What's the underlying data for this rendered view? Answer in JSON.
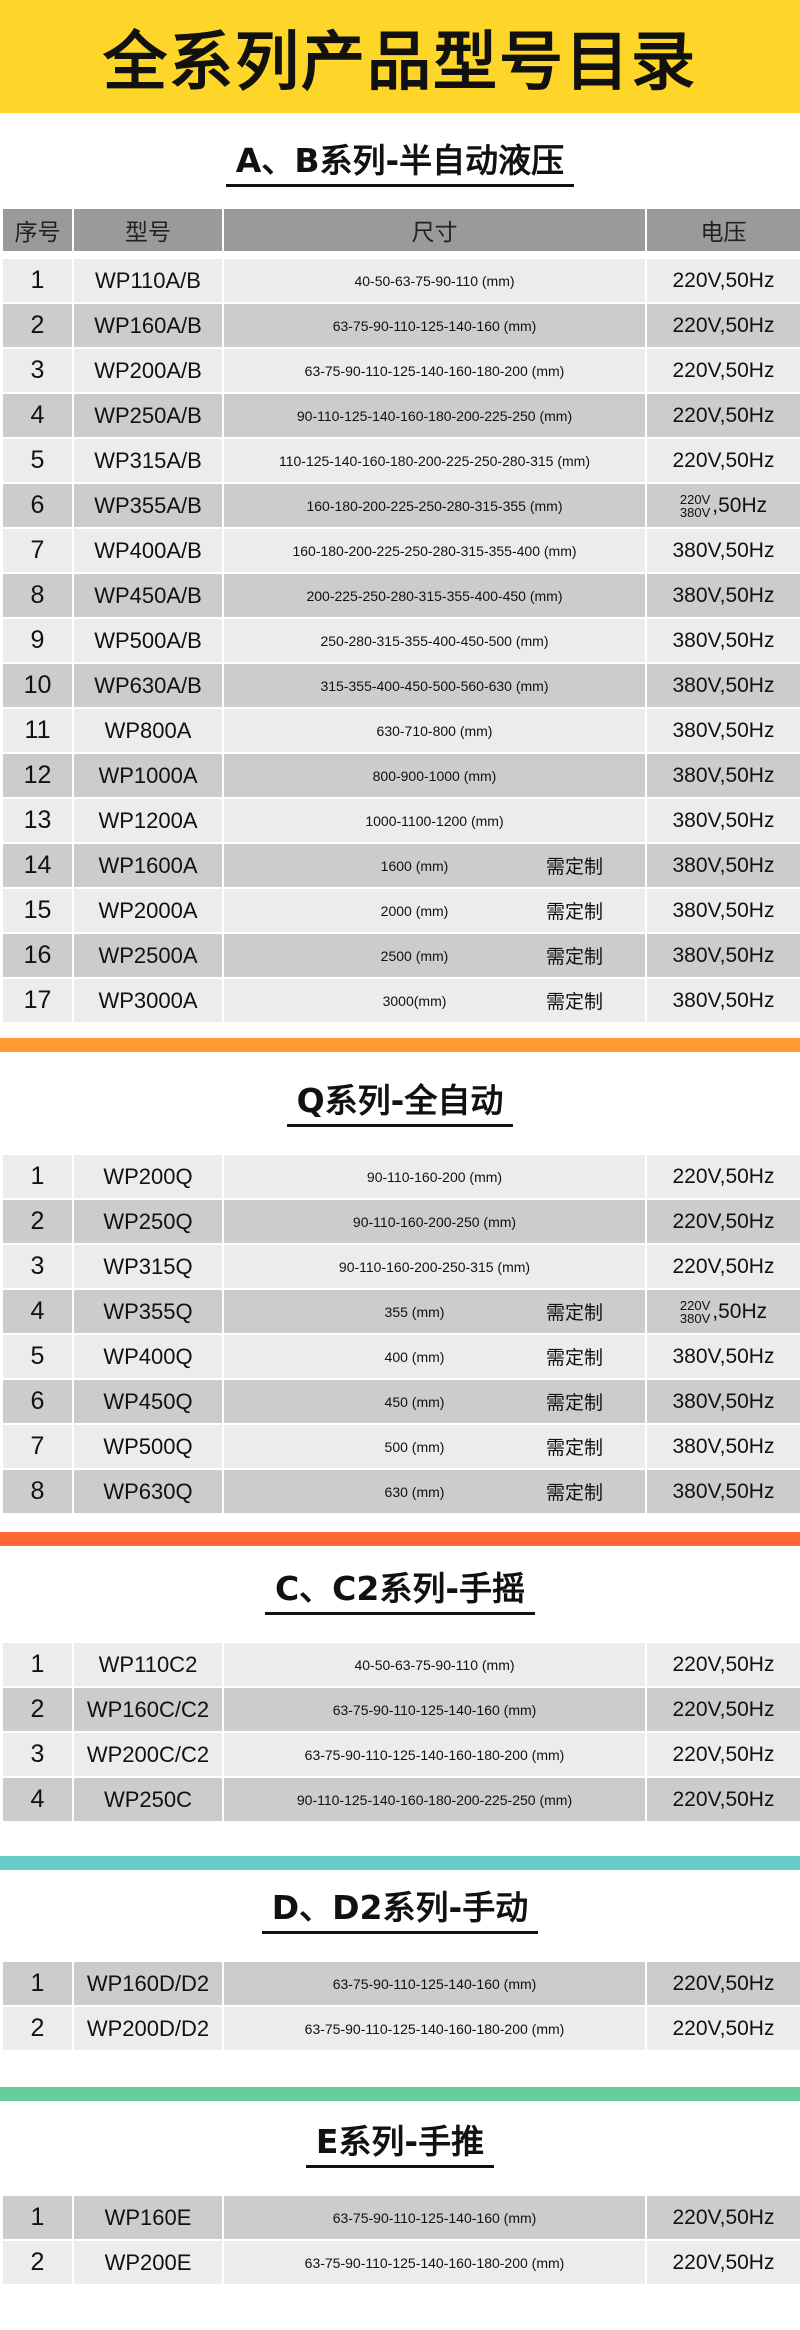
{
  "header": {
    "title": "全系列产品型号目录"
  },
  "columns": [
    "序号",
    "型号",
    "尺寸",
    "电压"
  ],
  "colors": {
    "header": "#FED62A",
    "bar_q": "#FF9A33",
    "bar_c": "#FF6633",
    "bar_d": "#66CCC8",
    "bar_e": "#66CC99",
    "row_light": "#ececec",
    "row_dark": "#cccccc",
    "table_header": "#9a9a9a"
  },
  "sections": [
    {
      "title": "A、B系列-半自动液压",
      "start_dark": false,
      "rows": [
        {
          "no": "1",
          "model": "WP110A/B",
          "size": "40-50-63-75-90-110 (mm)",
          "voltage": "220V,50Hz"
        },
        {
          "no": "2",
          "model": "WP160A/B",
          "size": "63-75-90-110-125-140-160 (mm)",
          "voltage": "220V,50Hz"
        },
        {
          "no": "3",
          "model": "WP200A/B",
          "size": "63-75-90-110-125-140-160-180-200 (mm)",
          "voltage": "220V,50Hz"
        },
        {
          "no": "4",
          "model": "WP250A/B",
          "size": "90-110-125-140-160-180-200-225-250 (mm)",
          "voltage": "220V,50Hz"
        },
        {
          "no": "5",
          "model": "WP315A/B",
          "size": "110-125-140-160-180-200-225-250-280-315 (mm)",
          "voltage": "220V,50Hz"
        },
        {
          "no": "6",
          "model": "WP355A/B",
          "size": "160-180-200-225-250-280-315-355 (mm)",
          "voltage_stack": [
            "220V",
            "380V"
          ],
          "voltage": ",50Hz"
        },
        {
          "no": "7",
          "model": "WP400A/B",
          "size": "160-180-200-225-250-280-315-355-400 (mm)",
          "voltage": "380V,50Hz"
        },
        {
          "no": "8",
          "model": "WP450A/B",
          "size": "200-225-250-280-315-355-400-450 (mm)",
          "voltage": "380V,50Hz"
        },
        {
          "no": "9",
          "model": "WP500A/B",
          "size": "250-280-315-355-400-450-500 (mm)",
          "voltage": "380V,50Hz"
        },
        {
          "no": "10",
          "model": "WP630A/B",
          "size": "315-355-400-450-500-560-630 (mm)",
          "voltage": "380V,50Hz"
        },
        {
          "no": "11",
          "model": "WP800A",
          "size": "630-710-800 (mm)",
          "voltage": "380V,50Hz"
        },
        {
          "no": "12",
          "model": "WP1000A",
          "size": "800-900-1000 (mm)",
          "voltage": "380V,50Hz"
        },
        {
          "no": "13",
          "model": "WP1200A",
          "size": "1000-1100-1200 (mm)",
          "voltage": "380V,50Hz"
        },
        {
          "no": "14",
          "model": "WP1600A",
          "size": "1600 (mm)",
          "note": "需定制",
          "voltage": "380V,50Hz"
        },
        {
          "no": "15",
          "model": "WP2000A",
          "size": "2000 (mm)",
          "note": "需定制",
          "voltage": "380V,50Hz"
        },
        {
          "no": "16",
          "model": "WP2500A",
          "size": "2500 (mm)",
          "note": "需定制",
          "voltage": "380V,50Hz"
        },
        {
          "no": "17",
          "model": "WP3000A",
          "size": "3000(mm)",
          "note": "需定制",
          "voltage": "380V,50Hz"
        }
      ]
    },
    {
      "title": "Q系列-全自动",
      "start_dark": false,
      "rows": [
        {
          "no": "1",
          "model": "WP200Q",
          "size": "90-110-160-200 (mm)",
          "voltage": "220V,50Hz"
        },
        {
          "no": "2",
          "model": "WP250Q",
          "size": "90-110-160-200-250 (mm)",
          "voltage": "220V,50Hz"
        },
        {
          "no": "3",
          "model": "WP315Q",
          "size": "90-110-160-200-250-315 (mm)",
          "voltage": "220V,50Hz"
        },
        {
          "no": "4",
          "model": "WP355Q",
          "size": "355 (mm)",
          "note": "需定制",
          "voltage_stack": [
            "220V",
            "380V"
          ],
          "voltage": ",50Hz"
        },
        {
          "no": "5",
          "model": "WP400Q",
          "size": "400 (mm)",
          "note": "需定制",
          "voltage": "380V,50Hz"
        },
        {
          "no": "6",
          "model": "WP450Q",
          "size": "450 (mm)",
          "note": "需定制",
          "voltage": "380V,50Hz"
        },
        {
          "no": "7",
          "model": "WP500Q",
          "size": "500 (mm)",
          "note": "需定制",
          "voltage": "380V,50Hz"
        },
        {
          "no": "8",
          "model": "WP630Q",
          "size": "630 (mm)",
          "note": "需定制",
          "voltage": "380V,50Hz"
        }
      ]
    },
    {
      "title": "C、C2系列-手摇",
      "start_dark": false,
      "rows": [
        {
          "no": "1",
          "model": "WP110C2",
          "size": "40-50-63-75-90-110 (mm)",
          "voltage": "220V,50Hz"
        },
        {
          "no": "2",
          "model": "WP160C/C2",
          "size": "63-75-90-110-125-140-160 (mm)",
          "voltage": "220V,50Hz"
        },
        {
          "no": "3",
          "model": "WP200C/C2",
          "size": "63-75-90-110-125-140-160-180-200 (mm)",
          "voltage": "220V,50Hz"
        },
        {
          "no": "4",
          "model": "WP250C",
          "size": "90-110-125-140-160-180-200-225-250 (mm)",
          "voltage": "220V,50Hz"
        }
      ]
    },
    {
      "title": "D、D2系列-手动",
      "start_dark": true,
      "rows": [
        {
          "no": "1",
          "model": "WP160D/D2",
          "size": "63-75-90-110-125-140-160 (mm)",
          "voltage": "220V,50Hz"
        },
        {
          "no": "2",
          "model": "WP200D/D2",
          "size": "63-75-90-110-125-140-160-180-200 (mm)",
          "voltage": "220V,50Hz"
        }
      ]
    },
    {
      "title": "E系列-手推",
      "start_dark": true,
      "rows": [
        {
          "no": "1",
          "model": "WP160E",
          "size": "63-75-90-110-125-140-160 (mm)",
          "voltage": "220V,50Hz"
        },
        {
          "no": "2",
          "model": "WP200E",
          "size": "63-75-90-110-125-140-160-180-200 (mm)",
          "voltage": "220V,50Hz"
        }
      ]
    }
  ]
}
